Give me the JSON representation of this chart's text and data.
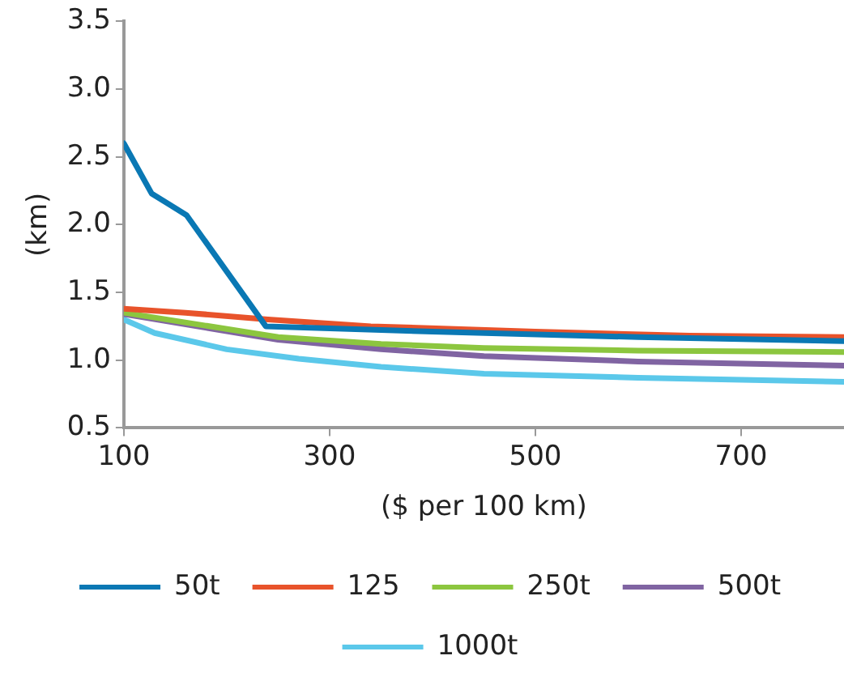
{
  "chart_data": {
    "type": "line",
    "xlabel": "($ per 100 km)",
    "ylabel": "(km)",
    "xlim": [
      100,
      800
    ],
    "xticks": [
      100,
      300,
      500,
      700
    ],
    "ylim": [
      0.5,
      3.5
    ],
    "yticks": [
      {
        "value": 0.5,
        "label": "0.5"
      },
      {
        "value": 1,
        "label": "1.0"
      },
      {
        "value": 1.5,
        "label": "1.5"
      },
      {
        "value": 2,
        "label": "2.0"
      },
      {
        "value": 2.5,
        "label": "2.5"
      },
      {
        "value": 3,
        "label": "3.0"
      },
      {
        "value": 3.5,
        "label": "3.5"
      }
    ],
    "grid": false,
    "legend": "bottom",
    "marker": "none",
    "line_style": "solid",
    "series": [
      {
        "name": "50t",
        "color": "#0a78b4",
        "x": [
          100,
          127,
          161,
          238,
          400,
          600,
          800
        ],
        "values": [
          2.6,
          2.23,
          2.07,
          1.25,
          1.21,
          1.17,
          1.14
        ]
      },
      {
        "name": "125",
        "color": "#e8532b",
        "x": [
          100,
          160,
          240,
          340,
          500,
          650,
          800
        ],
        "values": [
          1.38,
          1.35,
          1.3,
          1.25,
          1.21,
          1.18,
          1.17
        ]
      },
      {
        "name": "250t",
        "color": "#8cc63f",
        "x": [
          100,
          250,
          350,
          450,
          600,
          800
        ],
        "values": [
          1.35,
          1.17,
          1.12,
          1.09,
          1.07,
          1.06
        ]
      },
      {
        "name": "500t",
        "color": "#8064a2",
        "x": [
          100,
          250,
          350,
          450,
          600,
          800
        ],
        "values": [
          1.34,
          1.15,
          1.08,
          1.03,
          0.99,
          0.96
        ]
      },
      {
        "name": "1000t",
        "color": "#5bc8ea",
        "x": [
          100,
          130,
          200,
          270,
          350,
          450,
          600,
          800
        ],
        "values": [
          1.3,
          1.2,
          1.08,
          1.01,
          0.95,
          0.9,
          0.87,
          0.84
        ]
      }
    ]
  }
}
